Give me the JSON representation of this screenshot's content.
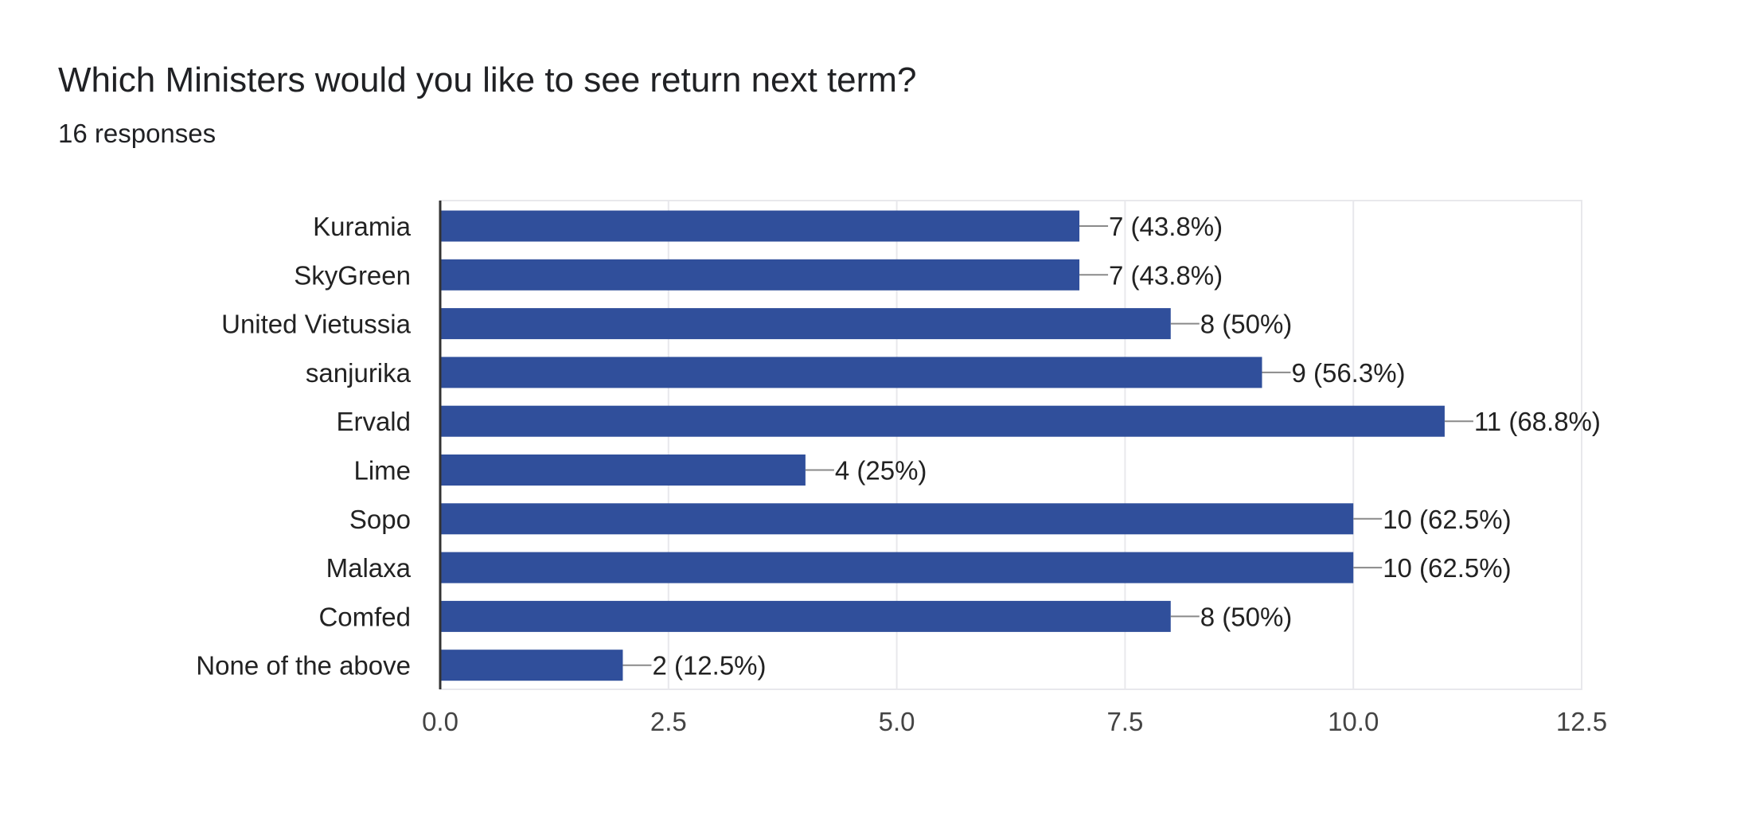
{
  "question": {
    "title": "Which Ministers would you like to see return next term?",
    "responses": "16 responses"
  },
  "chart_data": {
    "type": "bar",
    "orientation": "horizontal",
    "categories": [
      "Kuramia",
      "SkyGreen",
      "United Vietussia",
      "sanjurika",
      "Ervald",
      "Lime",
      "Sopo",
      "Malaxa",
      "Comfed",
      "None of the above"
    ],
    "values": [
      7,
      7,
      8,
      9,
      11,
      4,
      10,
      10,
      8,
      2
    ],
    "data_labels": [
      "7 (43.8%)",
      "7 (43.8%)",
      "8 (50%)",
      "9 (56.3%)",
      "11 (68.8%)",
      "4 (25%)",
      "10 (62.5%)",
      "10 (62.5%)",
      "8 (50%)",
      "2 (12.5%)"
    ],
    "x_ticks": [
      "0.0",
      "2.5",
      "5.0",
      "7.5",
      "10.0",
      "12.5"
    ],
    "xlim": [
      0,
      12.5
    ],
    "grid": true,
    "bar_color": "#304f9b",
    "leader_color": "#8a8a8a",
    "axis_color": "#333333",
    "grid_color": "#e8e8ec"
  }
}
